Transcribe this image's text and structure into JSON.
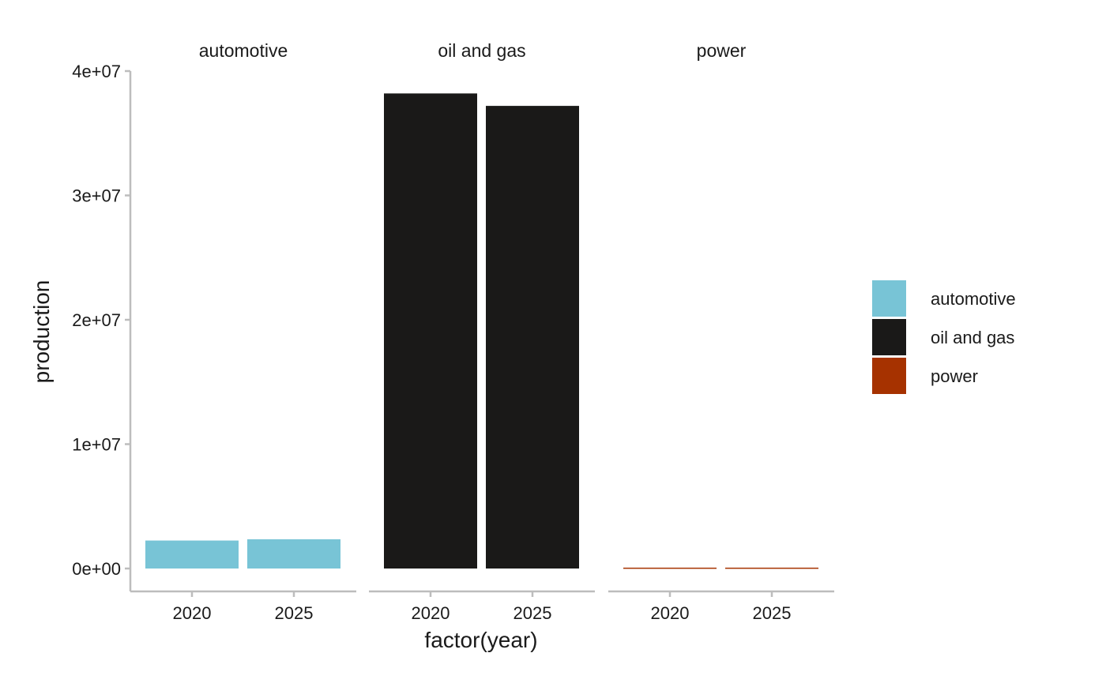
{
  "chart_data": {
    "type": "bar",
    "facets": [
      "automotive",
      "oil and gas",
      "power"
    ],
    "categories": [
      "2020",
      "2025"
    ],
    "series": [
      {
        "name": "automotive",
        "facet": "automotive",
        "values": [
          2250000,
          2350000
        ]
      },
      {
        "name": "oil and gas",
        "facet": "oil and gas",
        "values": [
          38200000,
          37200000
        ]
      },
      {
        "name": "power",
        "facet": "power",
        "values": [
          70000,
          70000
        ]
      }
    ],
    "xlabel": "factor(year)",
    "ylabel": "production",
    "ylim": [
      -1800000,
      40000000
    ],
    "yticks": [
      0,
      10000000,
      20000000,
      30000000,
      40000000
    ],
    "ytick_labels": [
      "0e+00",
      "1e+07",
      "2e+07",
      "3e+07",
      "4e+07"
    ],
    "grid": false,
    "legend": {
      "placement": "right",
      "entries": [
        "automotive",
        "oil and gas",
        "power"
      ]
    },
    "colors": {
      "automotive": "#78c4d6",
      "oil and gas": "#1a1918",
      "power": "#a63200"
    }
  }
}
